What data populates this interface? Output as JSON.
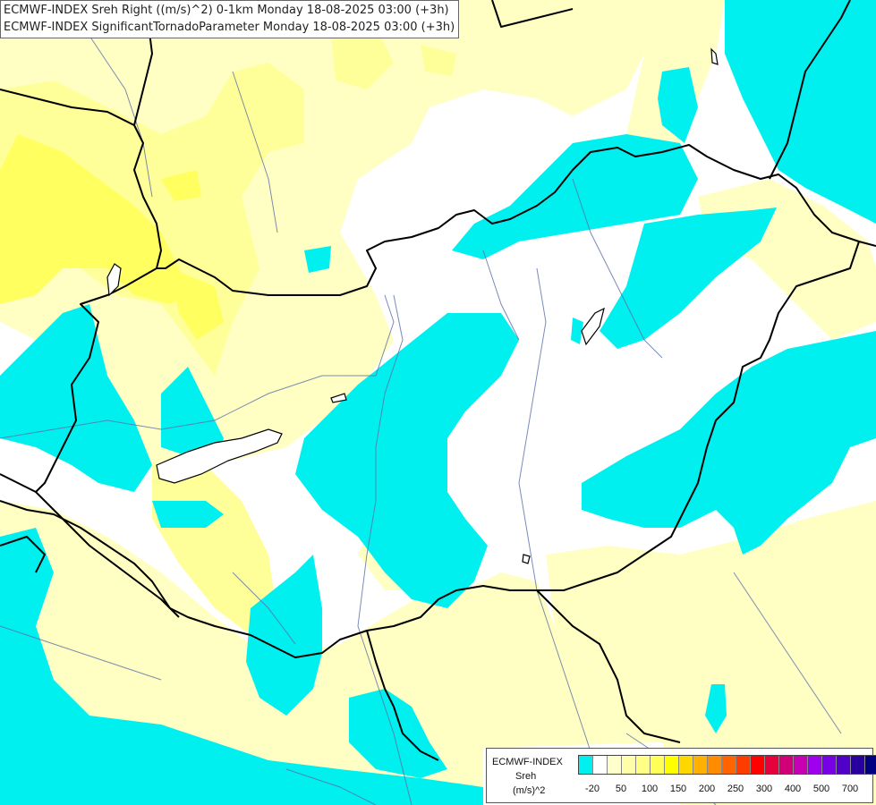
{
  "titles": [
    "ECMWF-INDEX Sreh Right ((m/s)^2) 0-1km Monday 18-08-2025 03:00 (+3h)",
    "ECMWF-INDEX SignificantTornadoParameter Monday 18-08-2025 03:00 (+3h)"
  ],
  "legend": {
    "name": "ECMWF-INDEX",
    "parameter": "Sreh",
    "unit": "(m/s)^2",
    "colors": [
      "#00f0f0",
      "#ffffff",
      "#ffffcc",
      "#ffffaa",
      "#ffff88",
      "#ffff55",
      "#ffff00",
      "#ffd700",
      "#ffb000",
      "#ff8c00",
      "#ff6400",
      "#ff3c00",
      "#ff0000",
      "#e6003c",
      "#d20078",
      "#c800b4",
      "#a000f0",
      "#7800e6",
      "#5000c8",
      "#2800a0",
      "#000080"
    ],
    "ticks": [
      "-20",
      "50",
      "100",
      "150",
      "200",
      "250",
      "300",
      "400",
      "500",
      "700"
    ]
  },
  "colors": {
    "cyan": "#00f0f0",
    "light_yellow": "#ffffc4",
    "yellow": "#ffff9a",
    "strong_yellow": "#ffff55",
    "border": "#000000",
    "river": "#5a6ea8"
  }
}
